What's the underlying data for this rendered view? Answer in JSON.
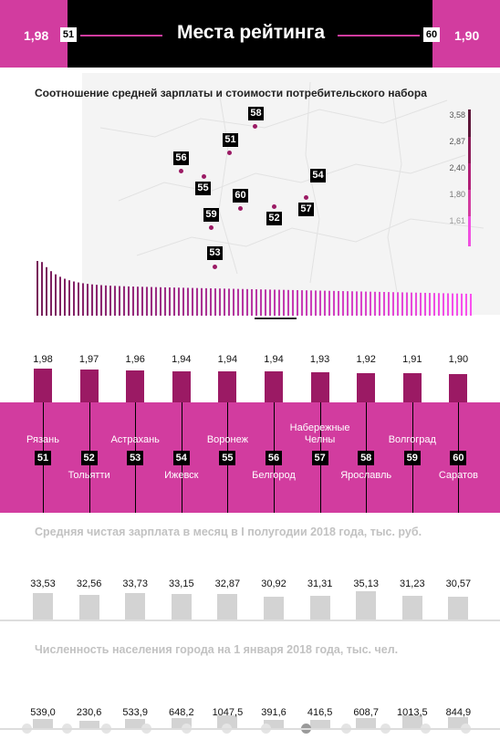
{
  "header": {
    "title": "Места рейтинга",
    "left_value": "1,98",
    "left_rank": "51",
    "right_value": "1,90",
    "right_rank": "60"
  },
  "map_title": "Соотношение средней зарплаты и стоимости потребительского набора",
  "map_labels": [
    "58",
    "51",
    "56",
    "54",
    "55",
    "60",
    "57",
    "52",
    "59",
    "53"
  ],
  "legend": [
    "3,58",
    "2,87",
    "2,40",
    "1,80",
    "1,61"
  ],
  "cities": [
    {
      "rank": "51",
      "name": "Рязань",
      "ratio": "1,98",
      "salary": "33,53",
      "population": "539,0"
    },
    {
      "rank": "52",
      "name": "Тольятти",
      "ratio": "1,97",
      "salary": "32,56",
      "population": "230,6"
    },
    {
      "rank": "53",
      "name": "Астрахань",
      "ratio": "1,96",
      "salary": "33,73",
      "population": "533,9"
    },
    {
      "rank": "54",
      "name": "Ижевск",
      "ratio": "1,94",
      "salary": "33,15",
      "population": "648,2"
    },
    {
      "rank": "55",
      "name": "Воронеж",
      "ratio": "1,94",
      "salary": "32,87",
      "population": "1047,5"
    },
    {
      "rank": "56",
      "name": "Белгород",
      "ratio": "1,94",
      "salary": "30,92",
      "population": "391,6"
    },
    {
      "rank": "57",
      "name_line1": "Набережные",
      "name_line2": "Челны",
      "ratio": "1,93",
      "salary": "31,31",
      "population": "416,5"
    },
    {
      "rank": "58",
      "name": "Ярославль",
      "ratio": "1,92",
      "salary": "35,13",
      "population": "608,7"
    },
    {
      "rank": "59",
      "name": "Волгоград",
      "ratio": "1,91",
      "salary": "31,23",
      "population": "1013,5"
    },
    {
      "rank": "60",
      "name": "Саратов",
      "ratio": "1,90",
      "salary": "30,57",
      "population": "844,9"
    }
  ],
  "salary_title": "Средняя чистая зарплата в месяц в I полугодии 2018 года, тыс. руб.",
  "population_title": "Численность населения города на 1 января 2018 года, тыс. чел.",
  "colors": {
    "accent": "#d23c9f",
    "bar_dark": "#9b1a64",
    "header": "#000000",
    "gray_bar": "#d3d3d3"
  },
  "chart_data": [
    {
      "type": "bar",
      "categories": [
        "Рязань",
        "Тольятти",
        "Астрахань",
        "Ижевск",
        "Воронеж",
        "Белгород",
        "Набережные Челны",
        "Ярославль",
        "Волгоград",
        "Саратов"
      ],
      "values": [
        1.98,
        1.97,
        1.96,
        1.94,
        1.94,
        1.94,
        1.93,
        1.92,
        1.91,
        1.9
      ]
    },
    {
      "type": "bar",
      "title": "Средняя чистая зарплата в месяц в I полугодии 2018 года, тыс. руб.",
      "categories": [
        "Рязань",
        "Тольятти",
        "Астрахань",
        "Ижевск",
        "Воронеж",
        "Белгород",
        "Набережные Челны",
        "Ярославль",
        "Волгоград",
        "Саратов"
      ],
      "values": [
        33.53,
        32.56,
        33.73,
        33.15,
        32.87,
        30.92,
        31.31,
        35.13,
        31.23,
        30.57
      ]
    },
    {
      "type": "bar",
      "title": "Численность населения города на 1 января 2018 года, тыс. чел.",
      "categories": [
        "Рязань",
        "Тольятти",
        "Астрахань",
        "Ижевск",
        "Воронеж",
        "Белгород",
        "Набережные Челны",
        "Ярославль",
        "Волгоград",
        "Саратов"
      ],
      "values": [
        539.0,
        230.6,
        533.9,
        648.2,
        1047.5,
        391.6,
        416.5,
        608.7,
        1013.5,
        844.9
      ]
    },
    {
      "type": "bar",
      "title": "Соотношение средней зарплаты и стоимости потребительского набора",
      "ylim": [
        1.61,
        3.58
      ]
    }
  ]
}
